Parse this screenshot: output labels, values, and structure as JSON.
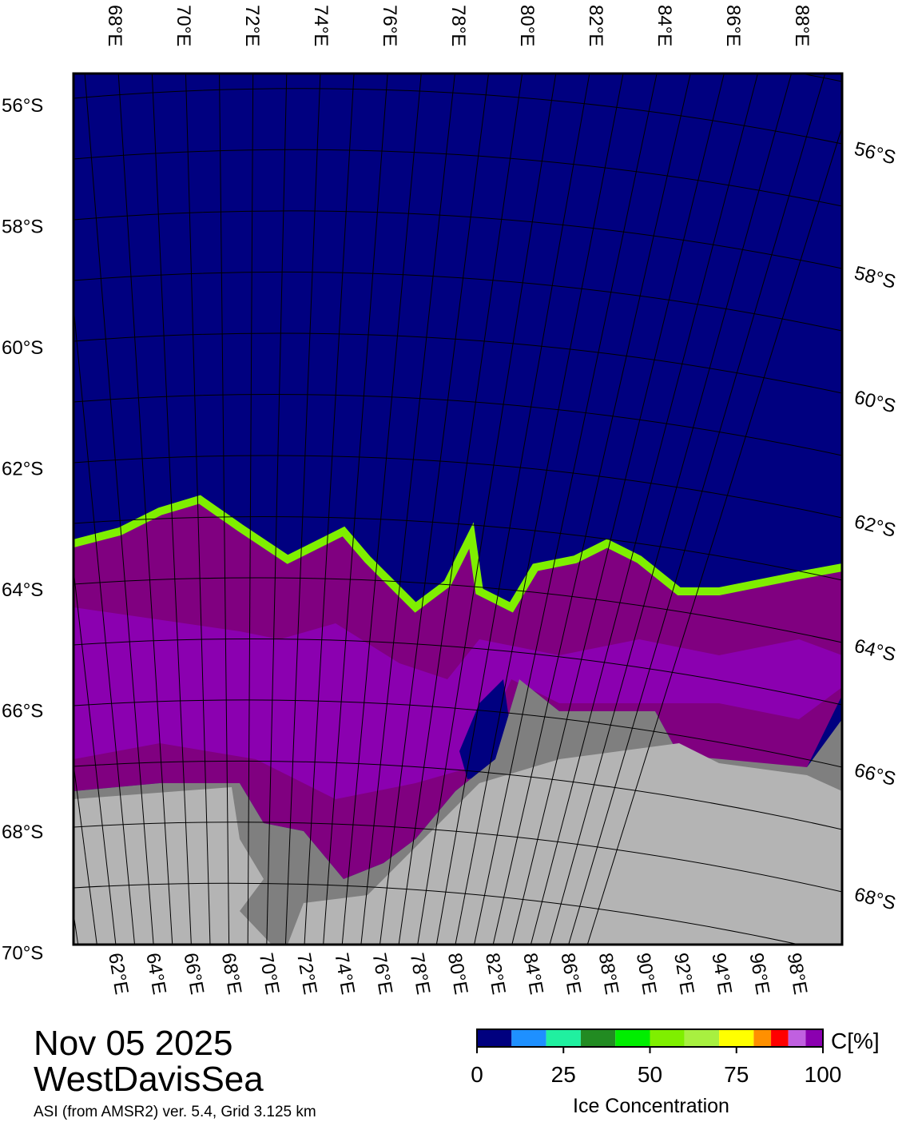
{
  "date": "Nov 05 2025",
  "region": "WestDavisSea",
  "source": "ASI (from AMSR2) ver. 5.4,  Grid 3.125 km",
  "map": {
    "top_labels": [
      "68°E",
      "70°E",
      "72°E",
      "74°E",
      "76°E",
      "78°E",
      "80°E",
      "82°E",
      "84°E",
      "86°E",
      "88°E"
    ],
    "bottom_labels": [
      "62°E",
      "64°E",
      "66°E",
      "68°E",
      "70°E",
      "72°E",
      "74°E",
      "76°E",
      "78°E",
      "80°E",
      "82°E",
      "84°E",
      "86°E",
      "88°E",
      "90°E",
      "92°E",
      "94°E",
      "96°E",
      "98°E"
    ],
    "left_labels": [
      "56°S",
      "58°S",
      "60°S",
      "62°S",
      "64°S",
      "66°S",
      "68°S",
      "70°S"
    ],
    "right_labels": [
      "56°S",
      "58°S",
      "60°S",
      "62°S",
      "64°S",
      "66°S",
      "68°S"
    ]
  },
  "colorbar": {
    "title": "Ice Concentration",
    "unit": "C[%]",
    "lim": [
      0,
      100
    ],
    "ticks": [
      0,
      25,
      50,
      75,
      100
    ],
    "bins": [
      0,
      10,
      20,
      30,
      40,
      50,
      60,
      70,
      80,
      85,
      90,
      95,
      100
    ],
    "colors": [
      "#00007f",
      "#1e90ff",
      "#20f0a0",
      "#228b22",
      "#00ee00",
      "#7fef00",
      "#a8f040",
      "#ffff00",
      "#ff9000",
      "#ff0000",
      "#c060e0",
      "#8b00b0"
    ]
  }
}
